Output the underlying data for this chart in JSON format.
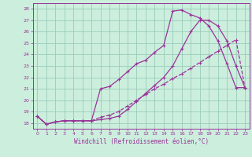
{
  "xlabel": "Windchill (Refroidissement éolien,°C)",
  "bg_color": "#cceedd",
  "grid_color": "#99ccbb",
  "line_color": "#993399",
  "xlim": [
    -0.5,
    23.5
  ],
  "ylim": [
    17.5,
    28.5
  ],
  "yticks": [
    18,
    19,
    20,
    21,
    22,
    23,
    24,
    25,
    26,
    27,
    28
  ],
  "xticks": [
    0,
    1,
    2,
    3,
    4,
    5,
    6,
    7,
    8,
    9,
    10,
    11,
    12,
    13,
    14,
    15,
    16,
    17,
    18,
    19,
    20,
    21,
    22,
    23
  ],
  "curve1_x": [
    0,
    1,
    2,
    3,
    4,
    5,
    6,
    7,
    8,
    9,
    10,
    11,
    12,
    13,
    14,
    15,
    16,
    17,
    18,
    19,
    20,
    21,
    22,
    23
  ],
  "curve1_y": [
    18.6,
    17.9,
    18.1,
    18.2,
    18.2,
    18.2,
    18.2,
    21.0,
    21.2,
    21.8,
    22.5,
    23.2,
    23.5,
    24.2,
    24.8,
    27.8,
    27.9,
    27.5,
    27.2,
    26.5,
    25.2,
    23.2,
    21.1,
    21.1
  ],
  "curve2_x": [
    0,
    1,
    2,
    3,
    4,
    5,
    6,
    7,
    8,
    9,
    10,
    11,
    12,
    13,
    14,
    15,
    16,
    17,
    18,
    19,
    20,
    21,
    22,
    23
  ],
  "curve2_y": [
    18.6,
    17.9,
    18.1,
    18.2,
    18.2,
    18.2,
    18.2,
    18.3,
    18.4,
    18.6,
    19.2,
    19.9,
    20.6,
    21.3,
    22.0,
    23.0,
    24.5,
    26.0,
    27.0,
    27.0,
    26.5,
    25.2,
    23.0,
    21.1
  ],
  "curve3_x": [
    0,
    1,
    2,
    3,
    4,
    5,
    6,
    7,
    8,
    9,
    10,
    11,
    12,
    13,
    14,
    15,
    16,
    17,
    18,
    19,
    20,
    21,
    22,
    23
  ],
  "curve3_y": [
    18.6,
    17.9,
    18.1,
    18.2,
    18.2,
    18.2,
    18.2,
    18.5,
    18.7,
    19.0,
    19.5,
    20.0,
    20.5,
    21.0,
    21.4,
    21.9,
    22.3,
    22.8,
    23.3,
    23.8,
    24.3,
    24.8,
    25.3,
    21.1
  ]
}
